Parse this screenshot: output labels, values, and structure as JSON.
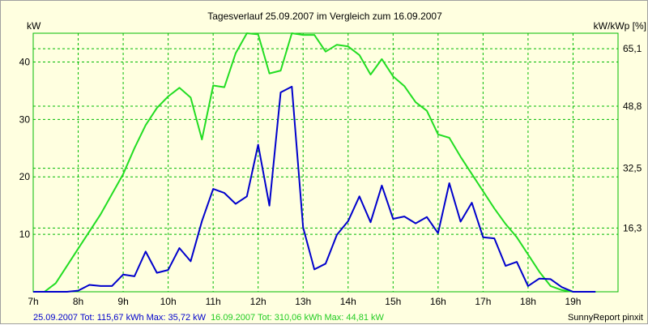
{
  "chart_data": {
    "type": "line",
    "title": "Tagesverlauf 25.09.2007 im Vergleich zum 16.09.2007",
    "ylabel_left": "kW",
    "ylabel_right": "kW/kWp [%]",
    "ylim": [
      0,
      45
    ],
    "yticks_left": [
      "10",
      "20",
      "30",
      "40"
    ],
    "yticks_right": [
      "16,3",
      "32,5",
      "48,8",
      "65,1"
    ],
    "xlim": [
      7,
      20
    ],
    "xticks": [
      "7h",
      "8h",
      "9h",
      "10h",
      "11h",
      "12h",
      "13h",
      "14h",
      "15h",
      "16h",
      "17h",
      "18h",
      "19h"
    ],
    "grid": true,
    "series": [
      {
        "name": "25.09.2007 Tot: 115,67 kWh Max: 35,72 kW",
        "color": "#0000cc",
        "x": [
          7,
          7.25,
          7.5,
          7.75,
          8,
          8.25,
          8.5,
          8.75,
          9,
          9.25,
          9.5,
          9.75,
          10,
          10.25,
          10.5,
          10.75,
          11,
          11.25,
          11.5,
          11.75,
          12,
          12.25,
          12.5,
          12.75,
          13,
          13.25,
          13.5,
          13.75,
          14,
          14.25,
          14.5,
          14.75,
          15,
          15.25,
          15.5,
          15.75,
          16,
          16.25,
          16.5,
          16.75,
          17,
          17.25,
          17.5,
          17.75,
          18,
          18.25,
          18.5,
          18.75,
          19,
          19.25,
          19.5
        ],
        "y": [
          0,
          0,
          0,
          0,
          0.2,
          1.2,
          1.0,
          1.0,
          3.0,
          2.7,
          7.0,
          3.3,
          3.8,
          7.6,
          5.3,
          12.3,
          17.9,
          17.2,
          15.3,
          16.6,
          25.6,
          15.0,
          34.7,
          35.7,
          11.2,
          3.9,
          4.9,
          9.9,
          12.3,
          16.6,
          12.1,
          18.5,
          12.7,
          13.1,
          11.9,
          13.0,
          10.2,
          18.9,
          12.2,
          15.5,
          9.5,
          9.3,
          4.5,
          5.2,
          1.0,
          2.3,
          2.2,
          0.8,
          0,
          0,
          0
        ]
      },
      {
        "name": "16.09.2007 Tot: 310,06 kWh Max: 44,81 kW",
        "color": "#22dd22",
        "x": [
          7,
          7.25,
          7.5,
          7.75,
          8,
          8.25,
          8.5,
          8.75,
          9,
          9.25,
          9.5,
          9.75,
          10,
          10.25,
          10.5,
          10.75,
          11,
          11.25,
          11.5,
          11.75,
          12,
          12.25,
          12.5,
          12.75,
          13,
          13.25,
          13.5,
          13.75,
          14,
          14.25,
          14.5,
          14.75,
          15,
          15.25,
          15.5,
          15.75,
          16,
          16.25,
          16.5,
          16.75,
          17,
          17.25,
          17.5,
          17.75,
          18,
          18.25,
          18.5,
          18.75,
          19,
          19.25,
          19.5
        ],
        "y": [
          0,
          0,
          1.5,
          4.5,
          7.5,
          10.5,
          13.5,
          17.0,
          20.5,
          25.0,
          29.0,
          32.0,
          34.0,
          35.5,
          33.8,
          26.5,
          35.9,
          35.6,
          41.5,
          45.0,
          44.8,
          38.0,
          38.5,
          45.0,
          44.7,
          44.7,
          41.8,
          43.0,
          42.7,
          41.2,
          37.8,
          40.5,
          37.5,
          35.8,
          33.0,
          31.5,
          27.4,
          26.8,
          23.5,
          20.5,
          17.5,
          14.5,
          11.8,
          9.5,
          6.5,
          3.5,
          1.0,
          0.3,
          0,
          0,
          0
        ]
      }
    ],
    "footer_left_1": "25.09.2007 Tot: 115,67 kWh Max: 35,72 kW",
    "footer_left_2": "16.09.2007 Tot: 310,06 kWh Max: 44,81 kW",
    "footer_right": "SunnyReport pinxit",
    "colors": {
      "background": "#ffffe0",
      "grid": "#00bb00"
    }
  }
}
